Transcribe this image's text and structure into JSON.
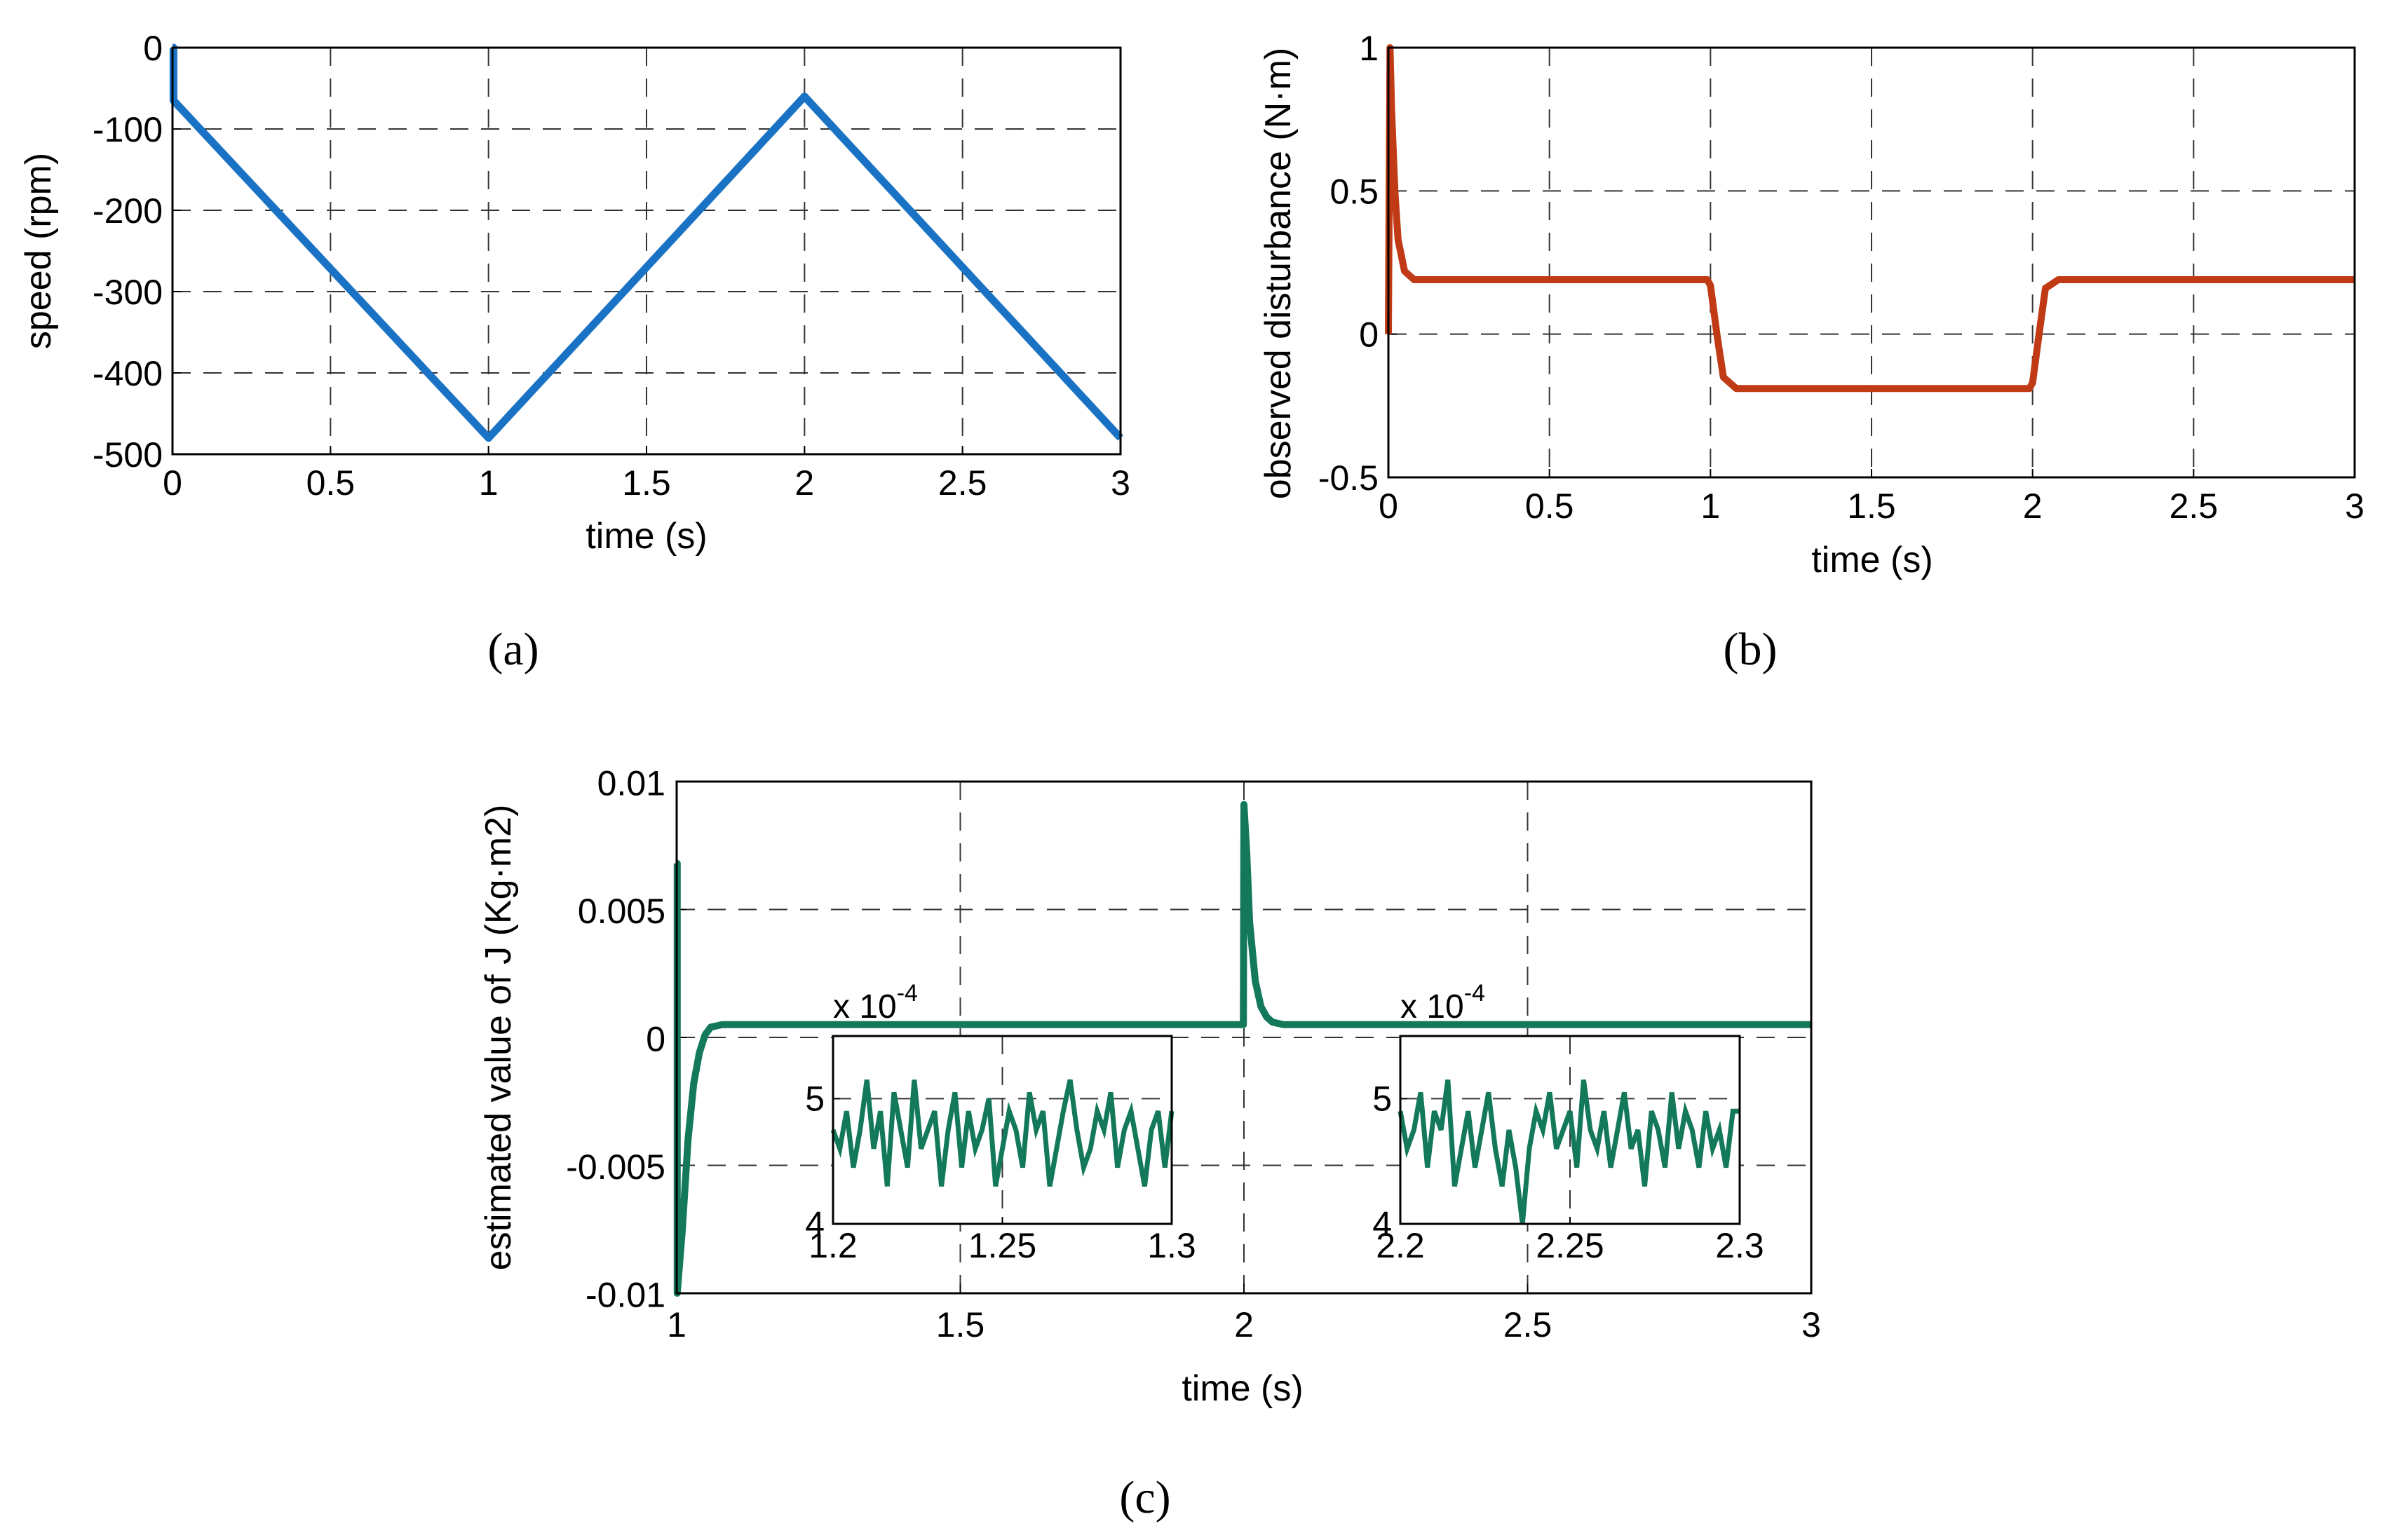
{
  "figure": {
    "captions": [
      "(a)",
      "(b)",
      "(c)"
    ]
  },
  "chart_data": [
    {
      "id": "a",
      "type": "line",
      "title": "",
      "xlabel": "time (s)",
      "ylabel": "speed (rpm)",
      "xlim": [
        0,
        3
      ],
      "ylim": [
        -500,
        0
      ],
      "xticks": [
        0,
        0.5,
        1,
        1.5,
        2,
        2.5,
        3
      ],
      "yticks": [
        0,
        -100,
        -200,
        -300,
        -400,
        -500
      ],
      "xtick_labels": [
        "0",
        "0.5",
        "1",
        "1.5",
        "2",
        "2.5",
        "3"
      ],
      "ytick_labels": [
        "0",
        "-100",
        "-200",
        "-300",
        "-400",
        "-500"
      ],
      "grid": true,
      "color": "#1a72c4",
      "series": [
        {
          "name": "speed",
          "x": [
            0,
            0.003,
            0.003,
            1,
            2,
            3
          ],
          "y": [
            0,
            0,
            -65,
            -480,
            -60,
            -480
          ]
        }
      ]
    },
    {
      "id": "b",
      "type": "line",
      "title": "",
      "xlabel": "time (s)",
      "ylabel": "observed disturbance (N·m)",
      "xlim": [
        0,
        3
      ],
      "ylim": [
        -0.5,
        1
      ],
      "xticks": [
        0,
        0.5,
        1,
        1.5,
        2,
        2.5,
        3
      ],
      "yticks": [
        1,
        0.5,
        0,
        -0.5
      ],
      "xtick_labels": [
        "0",
        "0.5",
        "1",
        "1.5",
        "2",
        "2.5",
        "3"
      ],
      "ytick_labels": [
        "1",
        "0.5",
        "0",
        "-0.5"
      ],
      "grid": true,
      "color": "#c13a16",
      "series": [
        {
          "name": "disturbance",
          "x": [
            0,
            0.005,
            0.01,
            0.02,
            0.03,
            0.05,
            0.08,
            0.12,
            0.99,
            1.0,
            1.02,
            1.04,
            1.08,
            1.99,
            2.0,
            2.02,
            2.04,
            2.08,
            3
          ],
          "y": [
            0,
            1.0,
            0.78,
            0.5,
            0.33,
            0.22,
            0.19,
            0.19,
            0.19,
            0.17,
            0.0,
            -0.15,
            -0.19,
            -0.19,
            -0.17,
            0.0,
            0.16,
            0.19,
            0.19
          ]
        }
      ]
    },
    {
      "id": "c",
      "type": "line",
      "title": "",
      "xlabel": "time (s)",
      "ylabel": "estimated value of J (Kg·m2)",
      "xlim": [
        1,
        3
      ],
      "ylim": [
        -0.01,
        0.01
      ],
      "xticks": [
        1,
        1.5,
        2,
        2.5,
        3
      ],
      "yticks": [
        0.01,
        0.005,
        0,
        -0.005,
        -0.01
      ],
      "xtick_labels": [
        "1",
        "1.5",
        "2",
        "2.5",
        "3"
      ],
      "ytick_labels": [
        "0.01",
        "0.005",
        "0",
        "-0.005",
        "-0.01"
      ],
      "grid": true,
      "color": "#13795a",
      "series": [
        {
          "name": "J estimate",
          "x": [
            1.0,
            1.001,
            1.001,
            1.01,
            1.02,
            1.03,
            1.04,
            1.05,
            1.06,
            1.08,
            1.1,
            1.999,
            2.0,
            2.005,
            2.01,
            2.02,
            2.03,
            2.04,
            2.05,
            2.07,
            3.0
          ],
          "y": [
            0.0068,
            0.0068,
            -0.01,
            -0.0075,
            -0.004,
            -0.0018,
            -0.0006,
            0.0001,
            0.0004,
            0.0005,
            0.0005,
            0.0005,
            0.0091,
            0.0072,
            0.0045,
            0.0022,
            0.0012,
            0.0008,
            0.0006,
            0.0005,
            0.0005
          ]
        }
      ],
      "insets": [
        {
          "id": "c-inset-1",
          "type": "line",
          "xlim": [
            1.2,
            1.3
          ],
          "ylim": [
            4,
            5.5
          ],
          "xticks": [
            1.2,
            1.25,
            1.3
          ],
          "yticks": [
            5,
            4
          ],
          "xtick_labels": [
            "1.2",
            "1.25",
            "1.3"
          ],
          "ytick_labels": [
            "5",
            "4"
          ],
          "multiplier": "x 10",
          "multiplier_exp": "-4",
          "x": [
            1.2,
            1.202,
            1.204,
            1.206,
            1.208,
            1.21,
            1.212,
            1.214,
            1.216,
            1.218,
            1.22,
            1.222,
            1.224,
            1.226,
            1.228,
            1.23,
            1.232,
            1.234,
            1.236,
            1.238,
            1.24,
            1.242,
            1.244,
            1.246,
            1.248,
            1.25,
            1.252,
            1.254,
            1.256,
            1.258,
            1.26,
            1.262,
            1.264,
            1.266,
            1.268,
            1.27,
            1.272,
            1.274,
            1.276,
            1.278,
            1.28,
            1.282,
            1.284,
            1.286,
            1.288,
            1.29,
            1.292,
            1.294,
            1.296,
            1.298,
            1.3
          ],
          "y": [
            4.75,
            4.6,
            4.9,
            4.45,
            4.75,
            5.15,
            4.6,
            4.9,
            4.3,
            5.05,
            4.75,
            4.45,
            5.15,
            4.6,
            4.75,
            4.9,
            4.3,
            4.75,
            5.05,
            4.45,
            4.9,
            4.6,
            4.75,
            5.0,
            4.3,
            4.6,
            4.9,
            4.75,
            4.45,
            5.05,
            4.75,
            4.9,
            4.3,
            4.6,
            4.9,
            5.15,
            4.75,
            4.45,
            4.6,
            4.9,
            4.75,
            5.05,
            4.45,
            4.75,
            4.9,
            4.6,
            4.3,
            4.75,
            4.9,
            4.45,
            4.9
          ]
        },
        {
          "id": "c-inset-2",
          "type": "line",
          "xlim": [
            2.2,
            2.3
          ],
          "ylim": [
            4,
            5.5
          ],
          "xticks": [
            2.2,
            2.25,
            2.3
          ],
          "yticks": [
            5,
            4
          ],
          "xtick_labels": [
            "2.2",
            "2.25",
            "2.3"
          ],
          "ytick_labels": [
            "5",
            "4"
          ],
          "multiplier": "x 10",
          "multiplier_exp": "-4",
          "x": [
            2.2,
            2.202,
            2.204,
            2.206,
            2.208,
            2.21,
            2.212,
            2.214,
            2.216,
            2.218,
            2.22,
            2.222,
            2.224,
            2.226,
            2.228,
            2.23,
            2.232,
            2.234,
            2.236,
            2.238,
            2.24,
            2.242,
            2.244,
            2.246,
            2.248,
            2.25,
            2.252,
            2.254,
            2.256,
            2.258,
            2.26,
            2.262,
            2.264,
            2.266,
            2.268,
            2.27,
            2.272,
            2.274,
            2.276,
            2.278,
            2.28,
            2.282,
            2.284,
            2.286,
            2.288,
            2.29,
            2.292,
            2.294,
            2.296,
            2.298,
            2.3
          ],
          "y": [
            4.9,
            4.6,
            4.75,
            5.05,
            4.45,
            4.9,
            4.75,
            5.15,
            4.3,
            4.6,
            4.9,
            4.45,
            4.75,
            5.05,
            4.6,
            4.3,
            4.75,
            4.45,
            4.0,
            4.6,
            4.9,
            4.75,
            5.05,
            4.6,
            4.75,
            4.9,
            4.45,
            5.15,
            4.75,
            4.6,
            4.9,
            4.45,
            4.75,
            5.05,
            4.6,
            4.75,
            4.3,
            4.9,
            4.75,
            4.45,
            5.05,
            4.6,
            4.9,
            4.75,
            4.45,
            4.9,
            4.6,
            4.75,
            4.45,
            4.9,
            4.9
          ]
        }
      ]
    }
  ]
}
